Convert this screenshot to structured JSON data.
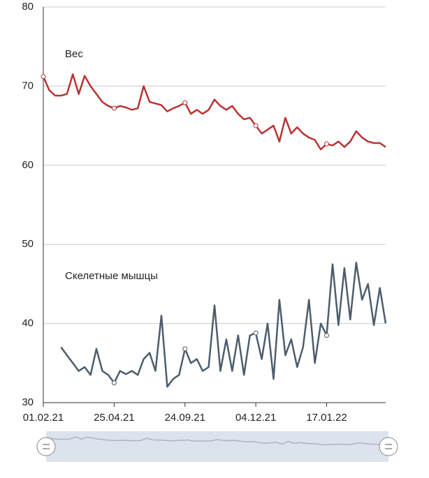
{
  "chart_data": {
    "type": "line",
    "categories": [
      "01.02.21",
      null,
      null,
      null,
      null,
      null,
      null,
      null,
      null,
      null,
      null,
      null,
      "25.04.21",
      null,
      null,
      null,
      null,
      null,
      null,
      null,
      null,
      null,
      null,
      null,
      "24.09.21",
      null,
      null,
      null,
      null,
      null,
      null,
      null,
      null,
      null,
      null,
      null,
      "04.12.21",
      null,
      null,
      null,
      null,
      null,
      null,
      null,
      null,
      null,
      null,
      null,
      "17.01.22",
      null,
      null,
      null,
      null,
      null,
      null,
      null,
      null,
      null,
      null
    ],
    "series": [
      {
        "name": "Вес",
        "color": "#b93333",
        "values": [
          71.2,
          69.5,
          68.8,
          68.8,
          69,
          71.5,
          69,
          71.3,
          70,
          69,
          68,
          67.5,
          67.2,
          67.5,
          67.3,
          67,
          67.2,
          70,
          68,
          67.8,
          67.6,
          66.8,
          67.2,
          67.5,
          67.9,
          66.5,
          67,
          66.5,
          67,
          68.3,
          67.5,
          67,
          67.5,
          66.5,
          65.8,
          66,
          65,
          64,
          64.5,
          65,
          63,
          66,
          64,
          64.8,
          64,
          63.5,
          63.2,
          62,
          62.7,
          62.5,
          63,
          62.3,
          63,
          64.3,
          63.5,
          63,
          62.8,
          62.8,
          62.3
        ]
      },
      {
        "name": "Скелетные мышцы",
        "color": "#4d5d6d",
        "values": [
          null,
          null,
          null,
          37,
          36,
          35,
          34,
          34.5,
          33.5,
          36.8,
          34,
          33.5,
          32.5,
          34,
          33.6,
          34,
          33.5,
          35.5,
          36.3,
          34,
          41,
          32,
          33,
          33.5,
          36.8,
          35,
          35.5,
          34,
          34.5,
          42.3,
          34,
          38,
          34,
          38.5,
          33.5,
          38.5,
          38.8,
          35.5,
          40,
          33,
          43,
          36,
          38,
          34.5,
          37,
          43,
          35,
          40,
          38.5,
          47.5,
          39.8,
          47,
          40.5,
          47.7,
          43,
          45,
          39.8,
          44.5,
          40
        ]
      }
    ],
    "ylim": [
      30,
      80
    ],
    "yticks": [
      30,
      40,
      50,
      60,
      70,
      80
    ],
    "grid": true
  }
}
